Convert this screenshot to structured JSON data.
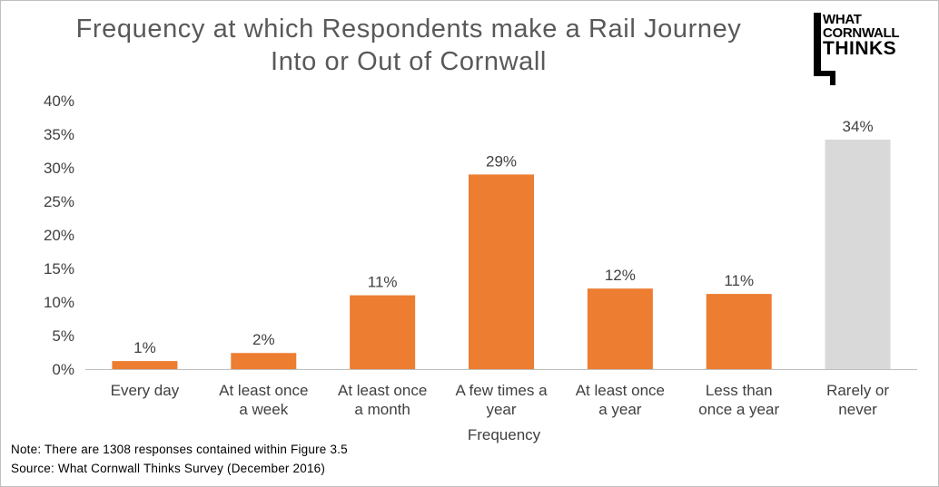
{
  "chart_data": {
    "type": "bar",
    "title": [
      "Frequency at which Respondents make a Rail Journey",
      "Into or Out of Cornwall"
    ],
    "xlabel": "Frequency",
    "ylabel": "",
    "ylim": [
      0,
      40
    ],
    "y_tick_values": [
      0,
      5,
      10,
      15,
      20,
      25,
      30,
      35,
      40
    ],
    "y_tick_labels": [
      "0%",
      "5%",
      "10%",
      "15%",
      "20%",
      "25%",
      "30%",
      "35%",
      "40%"
    ],
    "categories": [
      [
        "Every day"
      ],
      [
        "At least once",
        "a week"
      ],
      [
        "At least once",
        "a month"
      ],
      [
        "A few times a",
        "year"
      ],
      [
        "At least once",
        "a year"
      ],
      [
        "Less than",
        "once a year"
      ],
      [
        "Rarely or",
        "never"
      ]
    ],
    "values": [
      1.2,
      2.4,
      11,
      29,
      12,
      11.2,
      34.2
    ],
    "data_labels": [
      "1%",
      "2%",
      "11%",
      "29%",
      "12%",
      "11%",
      "34%"
    ],
    "bar_colors": [
      "#ed7d31",
      "#ed7d31",
      "#ed7d31",
      "#ed7d31",
      "#ed7d31",
      "#ed7d31",
      "#d9d9d9"
    ],
    "grid": false,
    "legend": "none"
  },
  "logo": {
    "line1": "WHAT",
    "line2": "CORNWALL",
    "line3": "THINKS"
  },
  "notes": {
    "note": "Note: There are 1308 responses contained within Figure 3.5",
    "source": "Source: What Cornwall Thinks Survey (December 2016)"
  }
}
